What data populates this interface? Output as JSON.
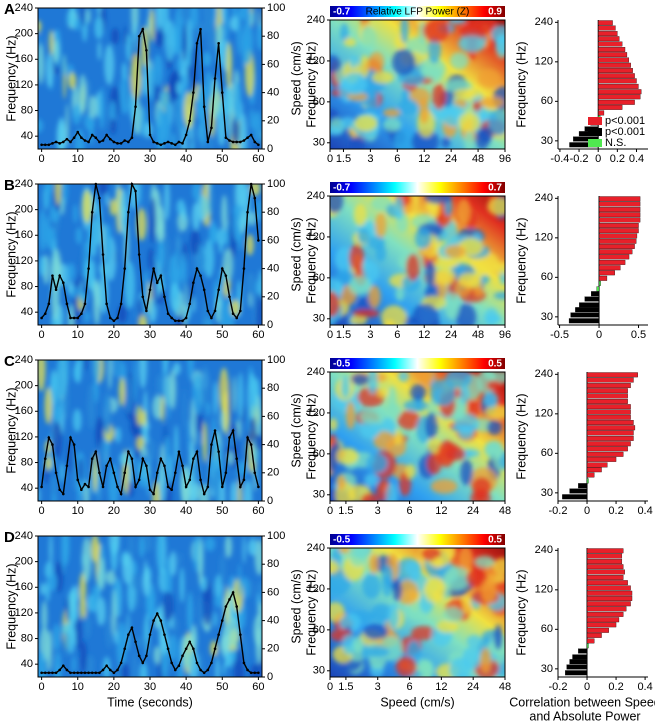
{
  "chart_data": [
    {
      "type": "spectrogram",
      "panel_label": "A",
      "ylabel": "Frequency (Hz)",
      "y2label": "Speed (cm/s)",
      "xlim": [
        -1,
        61
      ],
      "xticks": [
        0,
        10,
        20,
        30,
        40,
        50,
        60
      ],
      "ylim": [
        20,
        240
      ],
      "yticks": [
        40,
        80,
        120,
        160,
        200,
        240
      ],
      "y2lim": [
        0,
        100
      ],
      "y2ticks": [
        0,
        20,
        40,
        60,
        80,
        100
      ],
      "x": [
        0,
        1,
        2,
        3,
        4,
        5,
        6,
        7,
        8,
        9,
        10,
        11,
        12,
        13,
        14,
        15,
        16,
        17,
        18,
        19,
        20,
        21,
        22,
        23,
        24,
        25,
        26,
        27,
        28,
        29,
        30,
        31,
        32,
        33,
        34,
        35,
        36,
        37,
        38,
        39,
        40,
        41,
        42,
        43,
        44,
        45,
        46,
        47,
        48,
        49,
        50,
        51,
        52,
        53,
        54,
        55,
        56,
        57,
        58,
        59,
        60
      ],
      "series": [
        {
          "color": "#000000",
          "axis": "y2",
          "values": [
            3,
            3,
            3,
            4,
            5,
            4,
            5,
            7,
            5,
            8,
            12,
            8,
            6,
            5,
            10,
            8,
            5,
            6,
            10,
            7,
            5,
            4,
            4,
            6,
            5,
            8,
            30,
            80,
            85,
            70,
            10,
            5,
            4,
            3,
            4,
            5,
            4,
            3,
            5,
            4,
            10,
            20,
            40,
            75,
            85,
            30,
            5,
            15,
            50,
            75,
            40,
            8,
            6,
            5,
            5,
            5,
            6,
            8,
            10,
            5,
            3
          ]
        }
      ]
    },
    {
      "type": "heatmap",
      "clim": [
        -0.7,
        0.9
      ],
      "clabel": "Relative LFP Power (Z)",
      "ylabel": "Frequency (Hz)",
      "xscale": "symlog",
      "linthresh": 1.5,
      "xlim": [
        0,
        96
      ],
      "xticks": [
        0,
        1.5,
        3,
        6,
        12,
        24,
        48,
        96
      ],
      "yscale": "log",
      "ylim": [
        27,
        240
      ],
      "yticks": [
        30,
        60,
        120,
        240
      ]
    },
    {
      "type": "barh",
      "ylabel": "Frequency (Hz)",
      "yscale": "log",
      "ylim": [
        26,
        250
      ],
      "yticks": [
        30,
        60,
        120,
        240
      ],
      "xlim": [
        -0.42,
        0.52
      ],
      "xticks": [
        -0.4,
        -0.2,
        0,
        0.2,
        0.4
      ],
      "frequencies": [
        28,
        31,
        34,
        37,
        41,
        45,
        49,
        54,
        59,
        65,
        71,
        78,
        86,
        94,
        103,
        113,
        124,
        136,
        149,
        164,
        180,
        197,
        217,
        238
      ],
      "values": [
        -0.3,
        -0.26,
        -0.2,
        -0.14,
        -0.08,
        0.02,
        0.06,
        0.25,
        0.38,
        0.44,
        0.45,
        0.42,
        0.4,
        0.38,
        0.36,
        0.34,
        0.32,
        0.3,
        0.28,
        0.25,
        0.22,
        0.2,
        0.18,
        0.15
      ],
      "bar_groups": [
        1,
        1,
        1,
        1,
        1,
        2,
        0,
        0,
        0,
        0,
        0,
        0,
        0,
        0,
        0,
        0,
        0,
        0,
        0,
        0,
        0,
        0,
        0,
        0
      ],
      "colors": [
        "#e8202a",
        "#000000",
        "#50e850"
      ],
      "legend": [
        {
          "name": "p<0.001",
          "color": "#e8202a"
        },
        {
          "name": "p<0.001",
          "color": "#000000"
        },
        {
          "name": "N.S.",
          "color": "#50e850"
        }
      ]
    },
    {
      "type": "spectrogram",
      "panel_label": "B",
      "ylabel": "Frequency (Hz)",
      "y2label": "Speed (cm/s)",
      "xlim": [
        -1,
        61
      ],
      "xticks": [
        0,
        10,
        20,
        30,
        40,
        50,
        60
      ],
      "ylim": [
        20,
        240
      ],
      "yticks": [
        40,
        80,
        120,
        160,
        200,
        240
      ],
      "y2lim": [
        0,
        100
      ],
      "y2ticks": [
        0,
        20,
        40,
        60,
        80,
        100
      ],
      "x": [
        0,
        1,
        2,
        3,
        4,
        5,
        6,
        7,
        8,
        9,
        10,
        11,
        12,
        13,
        14,
        15,
        16,
        17,
        18,
        19,
        20,
        21,
        22,
        23,
        24,
        25,
        26,
        27,
        28,
        29,
        30,
        31,
        32,
        33,
        34,
        35,
        36,
        37,
        38,
        39,
        40,
        41,
        42,
        43,
        44,
        45,
        46,
        47,
        48,
        49,
        50,
        51,
        52,
        53,
        54,
        55,
        56,
        57,
        58,
        59,
        60
      ],
      "series": [
        {
          "color": "#000000",
          "axis": "y2",
          "values": [
            5,
            8,
            15,
            35,
            25,
            35,
            30,
            15,
            5,
            5,
            5,
            8,
            15,
            40,
            80,
            100,
            90,
            50,
            15,
            5,
            3,
            5,
            15,
            40,
            80,
            100,
            95,
            50,
            20,
            10,
            25,
            40,
            30,
            35,
            20,
            8,
            5,
            3,
            3,
            3,
            5,
            15,
            30,
            40,
            35,
            25,
            10,
            5,
            10,
            25,
            40,
            35,
            20,
            8,
            5,
            10,
            40,
            80,
            100,
            90,
            60
          ]
        }
      ]
    },
    {
      "type": "heatmap",
      "clim": [
        -0.7,
        0.7
      ],
      "ylabel": "Frequency (Hz)",
      "xscale": "symlog",
      "linthresh": 1.5,
      "xlim": [
        0,
        96
      ],
      "xticks": [
        0,
        1.5,
        3,
        6,
        12,
        24,
        48,
        96
      ],
      "yscale": "log",
      "ylim": [
        27,
        240
      ],
      "yticks": [
        30,
        60,
        120,
        240
      ]
    },
    {
      "type": "barh",
      "ylabel": "Frequency (Hz)",
      "yscale": "log",
      "ylim": [
        26,
        250
      ],
      "yticks": [
        30,
        60,
        120,
        240
      ],
      "xlim": [
        -0.52,
        0.62
      ],
      "xticks": [
        -0.5,
        0,
        0.5
      ],
      "frequencies": [
        28,
        31,
        34,
        37,
        41,
        45,
        49,
        54,
        59,
        65,
        71,
        78,
        86,
        94,
        103,
        113,
        124,
        136,
        149,
        164,
        180,
        197,
        217,
        238
      ],
      "values": [
        -0.38,
        -0.36,
        -0.3,
        -0.25,
        -0.18,
        -0.1,
        -0.03,
        0.02,
        0.1,
        0.2,
        0.27,
        0.33,
        0.38,
        0.42,
        0.45,
        0.47,
        0.48,
        0.5,
        0.5,
        0.52,
        0.52,
        0.52,
        0.52,
        0.52
      ],
      "bar_groups": [
        1,
        1,
        1,
        1,
        1,
        1,
        2,
        2,
        0,
        0,
        0,
        0,
        0,
        0,
        0,
        0,
        0,
        0,
        0,
        0,
        0,
        0,
        0,
        0
      ],
      "colors": [
        "#e8202a",
        "#000000",
        "#50e850"
      ]
    },
    {
      "type": "spectrogram",
      "panel_label": "C",
      "ylabel": "Frequency (Hz)",
      "y2label": "Speed (cm/s)",
      "xlim": [
        -1,
        61
      ],
      "xticks": [
        0,
        10,
        20,
        30,
        40,
        50,
        60
      ],
      "ylim": [
        20,
        240
      ],
      "yticks": [
        40,
        80,
        120,
        160,
        200,
        240
      ],
      "y2lim": [
        0,
        100
      ],
      "y2ticks": [
        0,
        20,
        40,
        60,
        80,
        100
      ],
      "x": [
        0,
        1,
        2,
        3,
        4,
        5,
        6,
        7,
        8,
        9,
        10,
        11,
        12,
        13,
        14,
        15,
        16,
        17,
        18,
        19,
        20,
        21,
        22,
        23,
        24,
        25,
        26,
        27,
        28,
        29,
        30,
        31,
        32,
        33,
        34,
        35,
        36,
        37,
        38,
        39,
        40,
        41,
        42,
        43,
        44,
        45,
        46,
        47,
        48,
        49,
        50,
        51,
        52,
        53,
        54,
        55,
        56,
        57,
        58,
        59,
        60
      ],
      "series": [
        {
          "color": "#000000",
          "axis": "y2",
          "values": [
            10,
            30,
            45,
            40,
            20,
            8,
            5,
            25,
            45,
            40,
            15,
            8,
            12,
            10,
            30,
            35,
            20,
            10,
            25,
            30,
            20,
            10,
            5,
            20,
            35,
            30,
            10,
            15,
            30,
            25,
            8,
            5,
            20,
            30,
            25,
            10,
            8,
            20,
            35,
            25,
            10,
            15,
            30,
            35,
            15,
            5,
            10,
            40,
            50,
            35,
            10,
            20,
            45,
            50,
            30,
            10,
            15,
            45,
            40,
            20,
            10
          ]
        }
      ]
    },
    {
      "type": "heatmap",
      "clim": [
        -0.5,
        0.5
      ],
      "ylabel": "Frequency (Hz)",
      "xscale": "symlog",
      "linthresh": 1.5,
      "xlim": [
        0,
        48
      ],
      "xticks": [
        0,
        1.5,
        3,
        6,
        12,
        24,
        48
      ],
      "yscale": "log",
      "ylim": [
        27,
        240
      ],
      "yticks": [
        30,
        60,
        120,
        240
      ]
    },
    {
      "type": "barh",
      "ylabel": "Frequency (Hz)",
      "yscale": "log",
      "ylim": [
        26,
        250
      ],
      "yticks": [
        30,
        60,
        120,
        240
      ],
      "xlim": [
        -0.2,
        0.42
      ],
      "xticks": [
        -0.2,
        0,
        0.2,
        0.4
      ],
      "frequencies": [
        28,
        31,
        34,
        37,
        41,
        45,
        49,
        54,
        59,
        65,
        71,
        78,
        86,
        94,
        103,
        113,
        124,
        136,
        149,
        164,
        180,
        197,
        217,
        238
      ],
      "values": [
        -0.17,
        -0.12,
        -0.06,
        0.01,
        0.05,
        0.1,
        0.14,
        0.2,
        0.25,
        0.28,
        0.3,
        0.32,
        0.32,
        0.33,
        0.32,
        0.3,
        0.3,
        0.3,
        0.28,
        0.28,
        0.28,
        0.3,
        0.32,
        0.35
      ],
      "bar_groups": [
        1,
        1,
        1,
        2,
        0,
        0,
        0,
        0,
        0,
        0,
        0,
        0,
        0,
        0,
        0,
        0,
        0,
        0,
        0,
        0,
        0,
        0,
        0,
        0
      ],
      "colors": [
        "#e8202a",
        "#000000",
        "#50e850"
      ]
    },
    {
      "type": "spectrogram",
      "panel_label": "D",
      "ylabel": "Frequency (Hz)",
      "y2label": "Speed (cm/s)",
      "xlabel": "Time (seconds)",
      "xlim": [
        -1,
        61
      ],
      "xticks": [
        0,
        10,
        20,
        30,
        40,
        50,
        60
      ],
      "ylim": [
        20,
        240
      ],
      "yticks": [
        40,
        80,
        120,
        160,
        200,
        240
      ],
      "y2lim": [
        0,
        100
      ],
      "y2ticks": [
        0,
        20,
        40,
        60,
        80,
        100
      ],
      "x": [
        0,
        1,
        2,
        3,
        4,
        5,
        6,
        7,
        8,
        9,
        10,
        11,
        12,
        13,
        14,
        15,
        16,
        17,
        18,
        19,
        20,
        21,
        22,
        23,
        24,
        25,
        26,
        27,
        28,
        29,
        30,
        31,
        32,
        33,
        34,
        35,
        36,
        37,
        38,
        39,
        40,
        41,
        42,
        43,
        44,
        45,
        46,
        47,
        48,
        49,
        50,
        51,
        52,
        53,
        54,
        55,
        56,
        57,
        58,
        59,
        60
      ],
      "series": [
        {
          "color": "#000000",
          "axis": "y2",
          "values": [
            3,
            3,
            3,
            3,
            3,
            5,
            8,
            5,
            3,
            3,
            3,
            3,
            3,
            3,
            3,
            3,
            3,
            5,
            8,
            5,
            3,
            5,
            10,
            20,
            30,
            35,
            25,
            15,
            10,
            15,
            30,
            40,
            45,
            40,
            30,
            20,
            10,
            5,
            8,
            15,
            20,
            25,
            20,
            10,
            5,
            3,
            5,
            10,
            20,
            30,
            40,
            50,
            55,
            60,
            50,
            30,
            10,
            5,
            3,
            3,
            3
          ]
        }
      ]
    },
    {
      "type": "heatmap",
      "clim": [
        -0.5,
        0.5
      ],
      "ylabel": "Frequency (Hz)",
      "xlabel": "Speed (cm/s)",
      "xscale": "symlog",
      "linthresh": 1.5,
      "xlim": [
        0,
        48
      ],
      "xticks": [
        0,
        1.5,
        3,
        6,
        12,
        24,
        48
      ],
      "yscale": "log",
      "ylim": [
        27,
        240
      ],
      "yticks": [
        30,
        60,
        120,
        240
      ]
    },
    {
      "type": "barh",
      "ylabel": "Frequency (Hz)",
      "xlabel_lines": [
        "Correlation between Speed",
        "and Absolute Power"
      ],
      "yscale": "log",
      "ylim": [
        26,
        250
      ],
      "yticks": [
        30,
        60,
        120,
        240
      ],
      "xlim": [
        -0.2,
        0.42
      ],
      "xticks": [
        -0.2,
        0,
        0.2,
        0.4
      ],
      "frequencies": [
        28,
        31,
        34,
        37,
        41,
        45,
        49,
        54,
        59,
        65,
        71,
        78,
        86,
        94,
        103,
        113,
        124,
        136,
        149,
        164,
        180,
        197,
        217,
        238
      ],
      "values": [
        -0.15,
        -0.14,
        -0.12,
        -0.1,
        -0.06,
        0.01,
        0.05,
        0.1,
        0.15,
        0.2,
        0.22,
        0.25,
        0.27,
        0.3,
        0.31,
        0.31,
        0.3,
        0.28,
        0.25,
        0.26,
        0.25,
        0.24,
        0.24,
        0.25
      ],
      "bar_groups": [
        1,
        1,
        1,
        1,
        1,
        2,
        0,
        0,
        0,
        0,
        0,
        0,
        0,
        0,
        0,
        0,
        0,
        0,
        0,
        0,
        0,
        0,
        0,
        0
      ],
      "colors": [
        "#e8202a",
        "#000000",
        "#50e850"
      ]
    }
  ]
}
